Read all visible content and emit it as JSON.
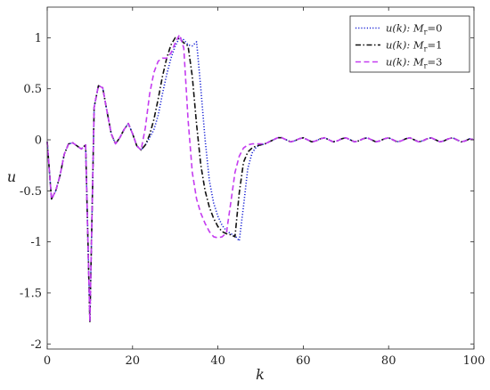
{
  "chart_data": {
    "type": "line",
    "xlabel": "k",
    "ylabel": "u",
    "xlim": [
      0,
      100
    ],
    "ylim": [
      -2.05,
      1.3
    ],
    "x_ticks": [
      0,
      20,
      40,
      60,
      80,
      100
    ],
    "y_ticks": [
      -2,
      -1.5,
      -1,
      -0.5,
      0,
      0.5,
      1
    ],
    "x_tick_labels": [
      "0",
      "20",
      "40",
      "60",
      "80",
      "100"
    ],
    "y_tick_labels": [
      "-2",
      "-1.5",
      "-1",
      "-0.5",
      "0",
      "0.5",
      "1"
    ],
    "grid": false,
    "legend_position": "top-right",
    "series": [
      {
        "name": "u(k): Mr=0",
        "legend_parts": [
          "u(k): ",
          "M",
          "r",
          "=0"
        ],
        "color": "#1a24d6",
        "dash": "dotted",
        "points": [
          [
            0,
            -0.02
          ],
          [
            1,
            -0.58
          ],
          [
            2,
            -0.5
          ],
          [
            3,
            -0.35
          ],
          [
            4,
            -0.14
          ],
          [
            5,
            -0.04
          ],
          [
            6,
            -0.03
          ],
          [
            7,
            -0.06
          ],
          [
            8,
            -0.09
          ],
          [
            9,
            -0.05
          ],
          [
            10,
            -1.78
          ],
          [
            11,
            0.32
          ],
          [
            12,
            0.53
          ],
          [
            13,
            0.51
          ],
          [
            14,
            0.28
          ],
          [
            15,
            0.06
          ],
          [
            16,
            -0.04
          ],
          [
            17,
            0.02
          ],
          [
            18,
            0.1
          ],
          [
            19,
            0.16
          ],
          [
            20,
            0.06
          ],
          [
            21,
            -0.06
          ],
          [
            22,
            -0.1
          ],
          [
            23,
            -0.05
          ],
          [
            24,
            0.02
          ],
          [
            25,
            0.1
          ],
          [
            26,
            0.24
          ],
          [
            27,
            0.45
          ],
          [
            28,
            0.64
          ],
          [
            29,
            0.8
          ],
          [
            30,
            0.92
          ],
          [
            31,
            1.0
          ],
          [
            32,
            0.98
          ],
          [
            33,
            0.93
          ],
          [
            34,
            0.92
          ],
          [
            35,
            0.96
          ],
          [
            36,
            0.5
          ],
          [
            37,
            0.0
          ],
          [
            38,
            -0.4
          ],
          [
            39,
            -0.62
          ],
          [
            40,
            -0.75
          ],
          [
            41,
            -0.84
          ],
          [
            42,
            -0.89
          ],
          [
            43,
            -0.92
          ],
          [
            44,
            -0.94
          ],
          [
            45,
            -0.99
          ],
          [
            46,
            -0.65
          ],
          [
            47,
            -0.28
          ],
          [
            48,
            -0.13
          ],
          [
            49,
            -0.07
          ],
          [
            50,
            -0.05
          ],
          [
            51,
            -0.04
          ],
          [
            52,
            -0.02
          ],
          [
            53,
            0.0
          ],
          [
            54,
            0.02
          ],
          [
            55,
            0.02
          ],
          [
            56,
            0.0
          ],
          [
            57,
            -0.02
          ],
          [
            58,
            -0.01
          ],
          [
            59,
            0.01
          ],
          [
            60,
            0.02
          ],
          [
            61,
            0.0
          ],
          [
            62,
            -0.02
          ],
          [
            63,
            -0.01
          ],
          [
            64,
            0.01
          ],
          [
            65,
            0.02
          ],
          [
            66,
            0.0
          ],
          [
            67,
            -0.02
          ],
          [
            68,
            -0.01
          ],
          [
            69,
            0.01
          ],
          [
            70,
            0.02
          ],
          [
            71,
            0.0
          ],
          [
            72,
            -0.02
          ],
          [
            73,
            -0.01
          ],
          [
            74,
            0.01
          ],
          [
            75,
            0.02
          ],
          [
            76,
            0.0
          ],
          [
            77,
            -0.02
          ],
          [
            78,
            -0.01
          ],
          [
            79,
            0.01
          ],
          [
            80,
            0.02
          ],
          [
            81,
            0.0
          ],
          [
            82,
            -0.02
          ],
          [
            83,
            -0.01
          ],
          [
            84,
            0.01
          ],
          [
            85,
            0.02
          ],
          [
            86,
            0.0
          ],
          [
            87,
            -0.02
          ],
          [
            88,
            -0.01
          ],
          [
            89,
            0.01
          ],
          [
            90,
            0.02
          ],
          [
            91,
            0.0
          ],
          [
            92,
            -0.02
          ],
          [
            93,
            -0.01
          ],
          [
            94,
            0.01
          ],
          [
            95,
            0.02
          ],
          [
            96,
            0.0
          ],
          [
            97,
            -0.02
          ],
          [
            98,
            -0.01
          ],
          [
            99,
            0.01
          ],
          [
            100,
            0.0
          ]
        ]
      },
      {
        "name": "u(k): Mr=1",
        "legend_parts": [
          "u(k): ",
          "M",
          "r",
          "=1"
        ],
        "color": "#111111",
        "dash": "dashdot",
        "points": [
          [
            0,
            -0.02
          ],
          [
            1,
            -0.58
          ],
          [
            2,
            -0.5
          ],
          [
            3,
            -0.35
          ],
          [
            4,
            -0.14
          ],
          [
            5,
            -0.04
          ],
          [
            6,
            -0.03
          ],
          [
            7,
            -0.06
          ],
          [
            8,
            -0.09
          ],
          [
            9,
            -0.05
          ],
          [
            10,
            -1.78
          ],
          [
            11,
            0.32
          ],
          [
            12,
            0.53
          ],
          [
            13,
            0.51
          ],
          [
            14,
            0.28
          ],
          [
            15,
            0.06
          ],
          [
            16,
            -0.04
          ],
          [
            17,
            0.02
          ],
          [
            18,
            0.1
          ],
          [
            19,
            0.16
          ],
          [
            20,
            0.06
          ],
          [
            21,
            -0.06
          ],
          [
            22,
            -0.1
          ],
          [
            23,
            -0.05
          ],
          [
            24,
            0.05
          ],
          [
            25,
            0.2
          ],
          [
            26,
            0.4
          ],
          [
            27,
            0.62
          ],
          [
            28,
            0.8
          ],
          [
            29,
            0.93
          ],
          [
            30,
            1.0
          ],
          [
            31,
            0.99
          ],
          [
            32,
            0.95
          ],
          [
            33,
            0.92
          ],
          [
            34,
            0.62
          ],
          [
            35,
            0.15
          ],
          [
            36,
            -0.25
          ],
          [
            37,
            -0.5
          ],
          [
            38,
            -0.66
          ],
          [
            39,
            -0.77
          ],
          [
            40,
            -0.85
          ],
          [
            41,
            -0.9
          ],
          [
            42,
            -0.92
          ],
          [
            43,
            -0.93
          ],
          [
            44,
            -0.95
          ],
          [
            45,
            -0.52
          ],
          [
            46,
            -0.22
          ],
          [
            47,
            -0.12
          ],
          [
            48,
            -0.08
          ],
          [
            49,
            -0.06
          ],
          [
            50,
            -0.05
          ],
          [
            51,
            -0.04
          ],
          [
            52,
            -0.02
          ],
          [
            53,
            0.0
          ],
          [
            54,
            0.02
          ],
          [
            55,
            0.02
          ],
          [
            56,
            0.0
          ],
          [
            57,
            -0.02
          ],
          [
            58,
            -0.01
          ],
          [
            59,
            0.01
          ],
          [
            60,
            0.02
          ],
          [
            61,
            0.0
          ],
          [
            62,
            -0.02
          ],
          [
            63,
            -0.01
          ],
          [
            64,
            0.01
          ],
          [
            65,
            0.02
          ],
          [
            66,
            0.0
          ],
          [
            67,
            -0.02
          ],
          [
            68,
            -0.01
          ],
          [
            69,
            0.01
          ],
          [
            70,
            0.02
          ],
          [
            71,
            0.0
          ],
          [
            72,
            -0.02
          ],
          [
            73,
            -0.01
          ],
          [
            74,
            0.01
          ],
          [
            75,
            0.02
          ],
          [
            76,
            0.0
          ],
          [
            77,
            -0.02
          ],
          [
            78,
            -0.01
          ],
          [
            79,
            0.01
          ],
          [
            80,
            0.02
          ],
          [
            81,
            0.0
          ],
          [
            82,
            -0.02
          ],
          [
            83,
            -0.01
          ],
          [
            84,
            0.01
          ],
          [
            85,
            0.02
          ],
          [
            86,
            0.0
          ],
          [
            87,
            -0.02
          ],
          [
            88,
            -0.01
          ],
          [
            89,
            0.01
          ],
          [
            90,
            0.02
          ],
          [
            91,
            0.0
          ],
          [
            92,
            -0.02
          ],
          [
            93,
            -0.01
          ],
          [
            94,
            0.01
          ],
          [
            95,
            0.02
          ],
          [
            96,
            0.0
          ],
          [
            97,
            -0.02
          ],
          [
            98,
            -0.01
          ],
          [
            99,
            0.01
          ],
          [
            100,
            0.0
          ]
        ]
      },
      {
        "name": "u(k): Mr=3",
        "legend_parts": [
          "u(k): ",
          "M",
          "r",
          "=3"
        ],
        "color": "#c43cf0",
        "dash": "dashed",
        "points": [
          [
            0,
            -0.02
          ],
          [
            1,
            -0.58
          ],
          [
            2,
            -0.5
          ],
          [
            3,
            -0.35
          ],
          [
            4,
            -0.14
          ],
          [
            5,
            -0.04
          ],
          [
            6,
            -0.03
          ],
          [
            7,
            -0.06
          ],
          [
            8,
            -0.09
          ],
          [
            9,
            -0.05
          ],
          [
            10,
            -1.78
          ],
          [
            11,
            0.32
          ],
          [
            12,
            0.53
          ],
          [
            13,
            0.51
          ],
          [
            14,
            0.28
          ],
          [
            15,
            0.06
          ],
          [
            16,
            -0.04
          ],
          [
            17,
            0.02
          ],
          [
            18,
            0.1
          ],
          [
            19,
            0.16
          ],
          [
            20,
            0.06
          ],
          [
            21,
            -0.06
          ],
          [
            22,
            -0.1
          ],
          [
            23,
            0.12
          ],
          [
            24,
            0.45
          ],
          [
            25,
            0.66
          ],
          [
            26,
            0.77
          ],
          [
            27,
            0.8
          ],
          [
            28,
            0.8
          ],
          [
            29,
            0.85
          ],
          [
            30,
            0.95
          ],
          [
            31,
            1.03
          ],
          [
            32,
            0.9
          ],
          [
            33,
            0.2
          ],
          [
            34,
            -0.32
          ],
          [
            35,
            -0.58
          ],
          [
            36,
            -0.72
          ],
          [
            37,
            -0.82
          ],
          [
            38,
            -0.9
          ],
          [
            39,
            -0.95
          ],
          [
            40,
            -0.96
          ],
          [
            41,
            -0.95
          ],
          [
            42,
            -0.91
          ],
          [
            43,
            -0.62
          ],
          [
            44,
            -0.32
          ],
          [
            45,
            -0.16
          ],
          [
            46,
            -0.08
          ],
          [
            47,
            -0.05
          ],
          [
            48,
            -0.04
          ],
          [
            49,
            -0.04
          ],
          [
            50,
            -0.04
          ],
          [
            51,
            -0.04
          ],
          [
            52,
            -0.02
          ],
          [
            53,
            0.0
          ],
          [
            54,
            0.02
          ],
          [
            55,
            0.02
          ],
          [
            56,
            0.0
          ],
          [
            57,
            -0.02
          ],
          [
            58,
            -0.01
          ],
          [
            59,
            0.01
          ],
          [
            60,
            0.02
          ],
          [
            61,
            0.0
          ],
          [
            62,
            -0.02
          ],
          [
            63,
            -0.01
          ],
          [
            64,
            0.01
          ],
          [
            65,
            0.02
          ],
          [
            66,
            0.0
          ],
          [
            67,
            -0.02
          ],
          [
            68,
            -0.01
          ],
          [
            69,
            0.01
          ],
          [
            70,
            0.02
          ],
          [
            71,
            0.0
          ],
          [
            72,
            -0.02
          ],
          [
            73,
            -0.01
          ],
          [
            74,
            0.01
          ],
          [
            75,
            0.02
          ],
          [
            76,
            0.0
          ],
          [
            77,
            -0.02
          ],
          [
            78,
            -0.01
          ],
          [
            79,
            0.01
          ],
          [
            80,
            0.02
          ],
          [
            81,
            0.0
          ],
          [
            82,
            -0.02
          ],
          [
            83,
            -0.01
          ],
          [
            84,
            0.01
          ],
          [
            85,
            0.02
          ],
          [
            86,
            0.0
          ],
          [
            87,
            -0.02
          ],
          [
            88,
            -0.01
          ],
          [
            89,
            0.01
          ],
          [
            90,
            0.02
          ],
          [
            91,
            0.0
          ],
          [
            92,
            -0.02
          ],
          [
            93,
            -0.01
          ],
          [
            94,
            0.01
          ],
          [
            95,
            0.02
          ],
          [
            96,
            0.0
          ],
          [
            97,
            -0.02
          ],
          [
            98,
            -0.01
          ],
          [
            99,
            0.01
          ],
          [
            100,
            0.0
          ]
        ]
      }
    ]
  }
}
